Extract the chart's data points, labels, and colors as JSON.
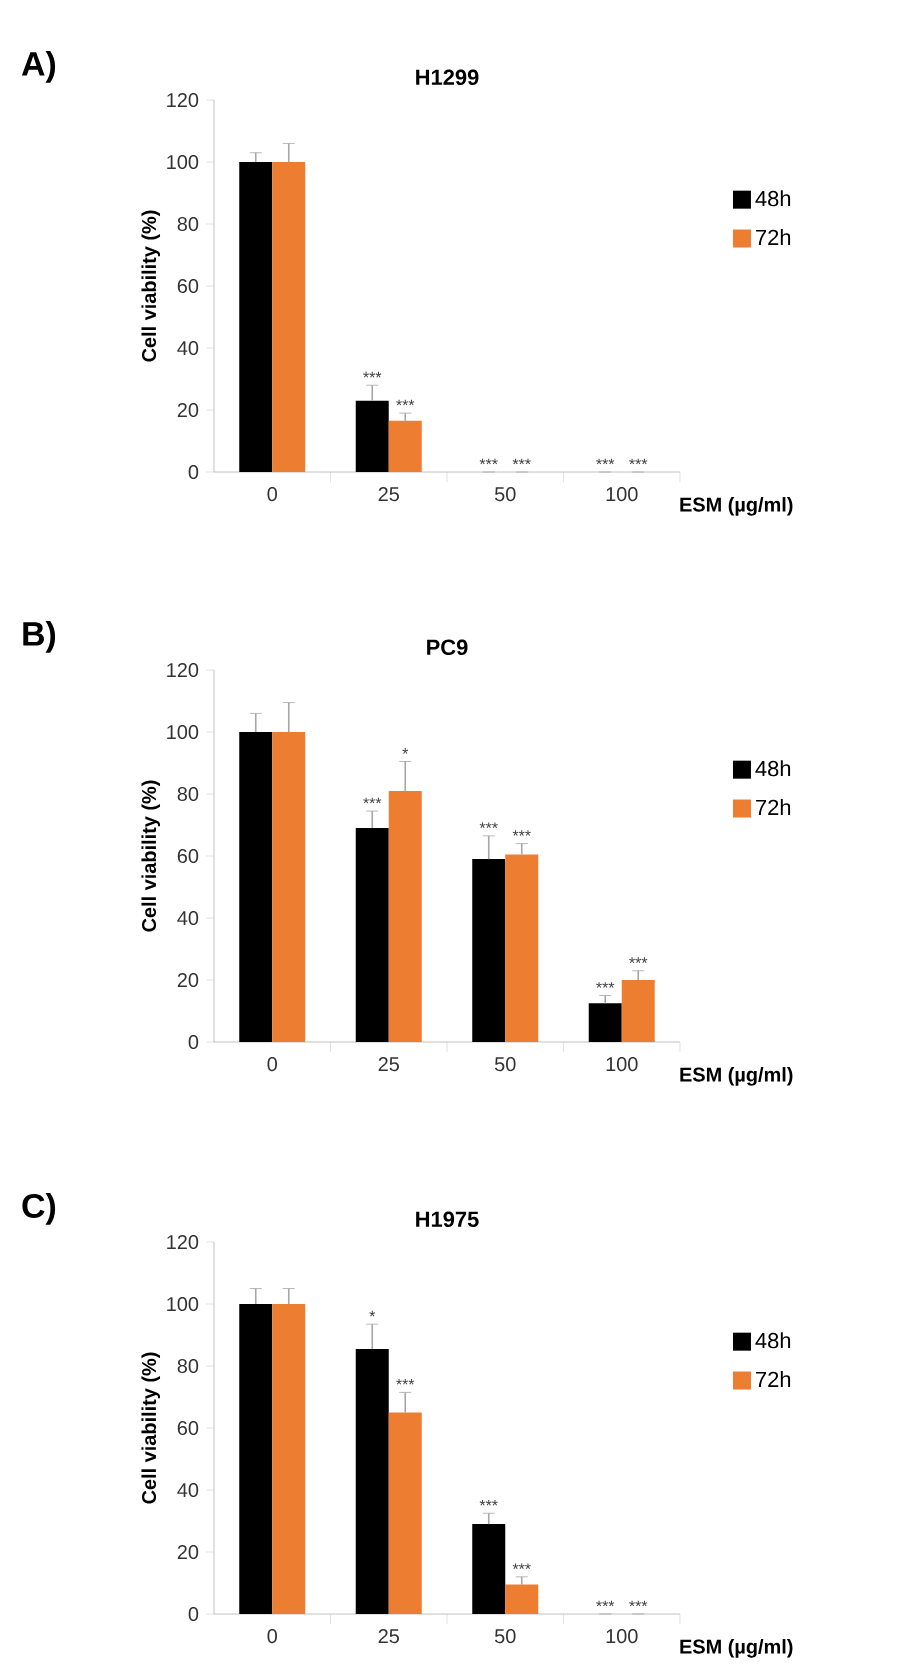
{
  "chart_data": [
    {
      "type": "bar",
      "title": "H1299",
      "xlabel": "ESM (µg/ml)",
      "ylabel": "Cell viability (%)",
      "annotations": [
        "A)"
      ],
      "categories": [
        "0",
        "25",
        "50",
        "100"
      ],
      "ylim": [
        0,
        120
      ],
      "yticks": [
        0,
        20,
        40,
        60,
        80,
        100,
        120
      ],
      "legend": "right",
      "series": [
        {
          "name": "48h",
          "color": "#000000",
          "values": [
            100,
            23,
            0,
            0
          ],
          "errors": [
            3,
            5,
            0,
            0
          ],
          "value_labels": [
            null,
            "***",
            "***",
            "***"
          ]
        },
        {
          "name": "72h",
          "color": "#ed7d31",
          "values": [
            100,
            16.5,
            0,
            0
          ],
          "errors": [
            6,
            2.5,
            0,
            0
          ],
          "value_labels": [
            null,
            "***",
            "***",
            "***"
          ]
        }
      ]
    },
    {
      "type": "bar",
      "title": "PC9",
      "xlabel": "ESM (µg/ml)",
      "ylabel": "Cell viability (%)",
      "annotations": [
        "B)"
      ],
      "categories": [
        "0",
        "25",
        "50",
        "100"
      ],
      "ylim": [
        0,
        120
      ],
      "yticks": [
        0,
        20,
        40,
        60,
        80,
        100,
        120
      ],
      "legend": "right",
      "series": [
        {
          "name": "48h",
          "color": "#000000",
          "values": [
            100,
            69,
            59,
            12.5
          ],
          "errors": [
            6,
            5.5,
            7.5,
            2.5
          ],
          "value_labels": [
            null,
            "***",
            "***",
            "***"
          ]
        },
        {
          "name": "72h",
          "color": "#ed7d31",
          "values": [
            100,
            81,
            60.5,
            20
          ],
          "errors": [
            9.5,
            9.5,
            3.5,
            3
          ],
          "value_labels": [
            null,
            "*",
            "***",
            "***"
          ]
        }
      ]
    },
    {
      "type": "bar",
      "title": "H1975",
      "xlabel": "ESM (µg/ml)",
      "ylabel": "Cell viability (%)",
      "annotations": [
        "C)"
      ],
      "categories": [
        "0",
        "25",
        "50",
        "100"
      ],
      "ylim": [
        0,
        120
      ],
      "yticks": [
        0,
        20,
        40,
        60,
        80,
        100,
        120
      ],
      "legend": "right",
      "series": [
        {
          "name": "48h",
          "color": "#000000",
          "values": [
            100,
            85.5,
            29,
            0
          ],
          "errors": [
            5,
            8,
            3.5,
            0
          ],
          "value_labels": [
            null,
            "*",
            "***",
            "***"
          ]
        },
        {
          "name": "72h",
          "color": "#ed7d31",
          "values": [
            100,
            65,
            9.5,
            0
          ],
          "errors": [
            5,
            6.5,
            2.5,
            0
          ],
          "value_labels": [
            null,
            "***",
            "***",
            "***"
          ]
        }
      ]
    }
  ]
}
